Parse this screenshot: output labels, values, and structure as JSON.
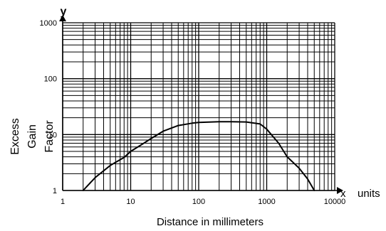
{
  "chart_data": {
    "type": "line",
    "title": "",
    "xlabel": "Distance in millimeters",
    "ylabel_lines": [
      "Excess",
      "Gain",
      "Factor"
    ],
    "x_axis_name": "x",
    "y_axis_name": "y",
    "x_units": "units",
    "x_scale": "log",
    "y_scale": "log",
    "xlim": [
      1,
      10000
    ],
    "ylim": [
      1,
      1000
    ],
    "x_ticks": [
      1,
      10,
      100,
      1000,
      10000
    ],
    "x_tick_labels": [
      "1",
      "10",
      "100",
      "1000",
      "10000"
    ],
    "y_ticks": [
      1,
      10,
      100,
      1000
    ],
    "y_tick_labels": [
      "1",
      "10",
      "100",
      "1000"
    ],
    "grid": true,
    "legend": "none",
    "line_color": "#000000",
    "series": [
      {
        "x": [
          2,
          3,
          5,
          8,
          10,
          15,
          20,
          30,
          50,
          80,
          100,
          200,
          300,
          500,
          800,
          1000,
          1500,
          2000,
          3000,
          4000,
          5000
        ],
        "y": [
          1,
          1.7,
          2.8,
          3.9,
          5,
          6.8,
          8.5,
          11.5,
          14.5,
          16,
          16.5,
          17,
          17,
          16.8,
          15.5,
          12.5,
          7,
          4,
          2.5,
          1.6,
          1
        ]
      }
    ]
  }
}
